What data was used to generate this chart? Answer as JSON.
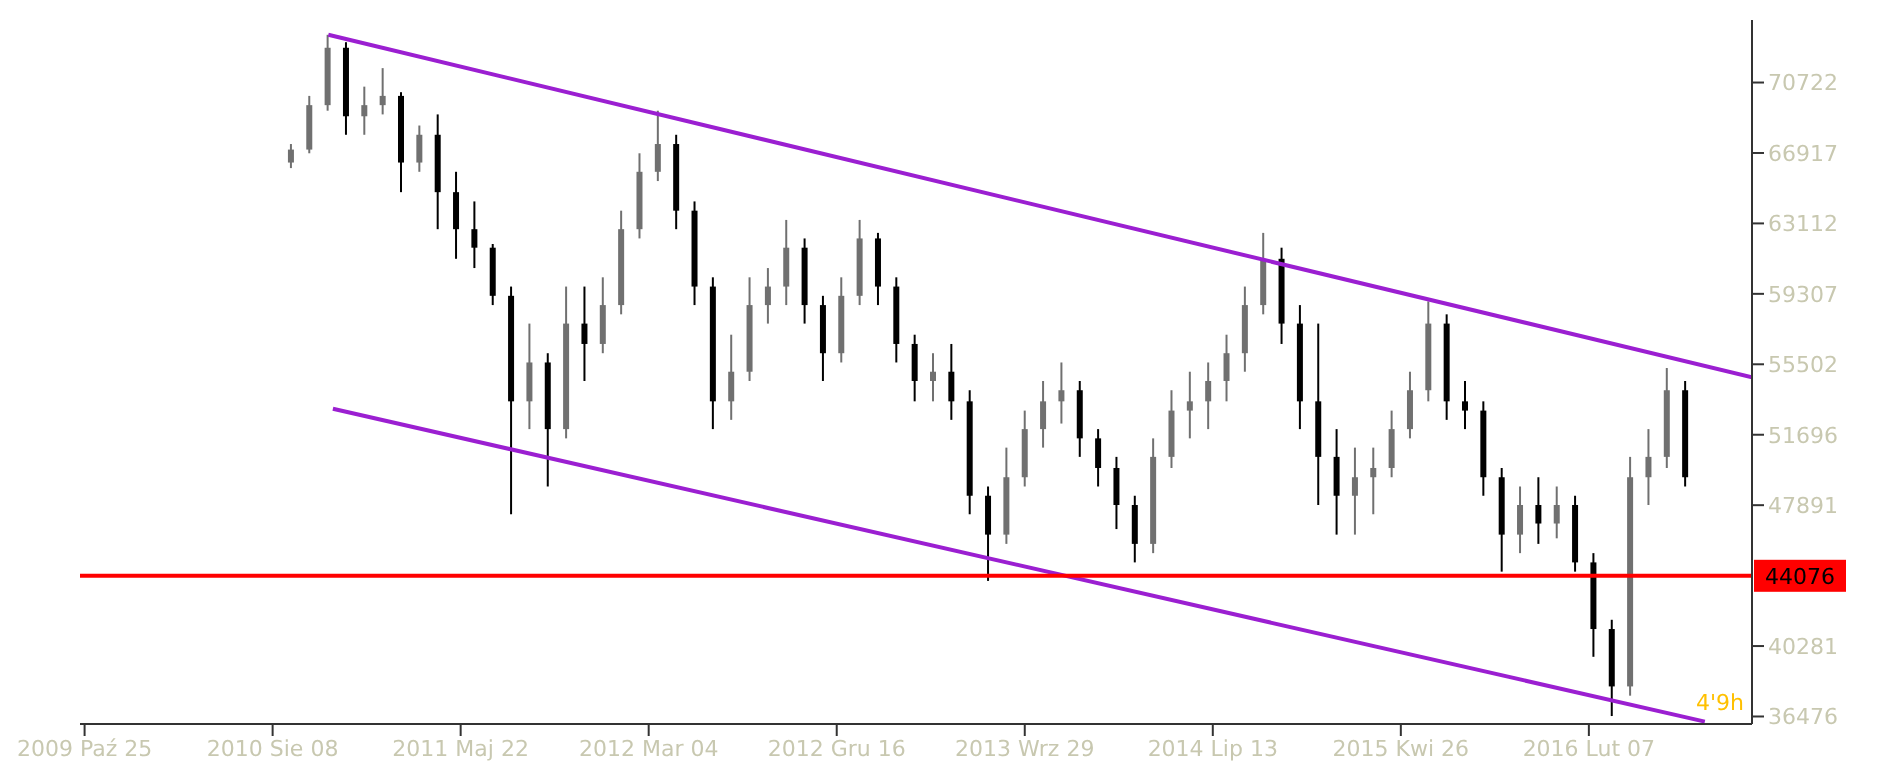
{
  "chart_data": {
    "type": "candlestick",
    "x": [
      "2010-09-05",
      "2010-10-03",
      "2010-10-31",
      "2010-11-28",
      "2010-12-26",
      "2011-01-23",
      "2011-02-20",
      "2011-03-20",
      "2011-04-17",
      "2011-05-15",
      "2011-06-12",
      "2011-07-10",
      "2011-08-07",
      "2011-09-04",
      "2011-10-02",
      "2011-10-30",
      "2011-11-27",
      "2011-12-25",
      "2012-01-22",
      "2012-02-19",
      "2012-03-18",
      "2012-04-15",
      "2012-05-13",
      "2012-06-10",
      "2012-07-08",
      "2012-08-05",
      "2012-09-02",
      "2012-09-30",
      "2012-10-28",
      "2012-11-25",
      "2012-12-23",
      "2013-01-20",
      "2013-02-17",
      "2013-03-17",
      "2013-04-14",
      "2013-05-12",
      "2013-06-09",
      "2013-07-07",
      "2013-08-04",
      "2013-09-01",
      "2013-09-29",
      "2013-10-27",
      "2013-11-24",
      "2013-12-22",
      "2014-01-19",
      "2014-02-16",
      "2014-03-16",
      "2014-04-13",
      "2014-05-11",
      "2014-06-08",
      "2014-07-06",
      "2014-08-03",
      "2014-08-31",
      "2014-09-28",
      "2014-10-26",
      "2014-11-23",
      "2014-12-21",
      "2015-01-18",
      "2015-02-15",
      "2015-03-15",
      "2015-04-12",
      "2015-05-10",
      "2015-06-07",
      "2015-07-05",
      "2015-08-02",
      "2015-08-30",
      "2015-09-27",
      "2015-10-25",
      "2015-11-22",
      "2015-12-20",
      "2016-01-17",
      "2016-02-14",
      "2016-03-13",
      "2016-04-10",
      "2016-05-08",
      "2016-06-05",
      "2016-07-03"
    ],
    "ohlc": [
      [
        66400,
        67400,
        66100,
        67100
      ],
      [
        67100,
        70000,
        66900,
        69500
      ],
      [
        69500,
        73300,
        69200,
        72600
      ],
      [
        72600,
        72900,
        67900,
        68900
      ],
      [
        68900,
        70500,
        67900,
        69500
      ],
      [
        69500,
        71500,
        69000,
        70000
      ],
      [
        70000,
        70200,
        64800,
        66400
      ],
      [
        66400,
        68400,
        65900,
        67900
      ],
      [
        67900,
        69000,
        62800,
        64800
      ],
      [
        64800,
        65900,
        61200,
        62800
      ],
      [
        62800,
        64300,
        60700,
        61800
      ],
      [
        61800,
        62000,
        58700,
        59200
      ],
      [
        59200,
        59700,
        47400,
        53500
      ],
      [
        53500,
        57700,
        52000,
        55600
      ],
      [
        55600,
        56100,
        48900,
        52000
      ],
      [
        52000,
        59700,
        51500,
        57700
      ],
      [
        57700,
        59700,
        54600,
        56600
      ],
      [
        56600,
        60200,
        56100,
        58700
      ],
      [
        58700,
        63800,
        58200,
        62800
      ],
      [
        62800,
        66900,
        62300,
        65900
      ],
      [
        65900,
        69200,
        65400,
        67400
      ],
      [
        67400,
        67900,
        62800,
        63800
      ],
      [
        63800,
        64300,
        58700,
        59700
      ],
      [
        59700,
        60200,
        52000,
        53500
      ],
      [
        53500,
        57100,
        52500,
        55100
      ],
      [
        55100,
        60200,
        54600,
        58700
      ],
      [
        58700,
        60700,
        57700,
        59700
      ],
      [
        59700,
        63300,
        58700,
        61800
      ],
      [
        61800,
        62300,
        57700,
        58700
      ],
      [
        58700,
        59200,
        54600,
        56100
      ],
      [
        56100,
        60200,
        55600,
        59200
      ],
      [
        59200,
        63300,
        58700,
        62300
      ],
      [
        62300,
        62600,
        58700,
        59700
      ],
      [
        59700,
        60200,
        55600,
        56600
      ],
      [
        56600,
        57100,
        53500,
        54600
      ],
      [
        54600,
        56100,
        53500,
        55100
      ],
      [
        55100,
        56600,
        52500,
        53500
      ],
      [
        53500,
        54100,
        47400,
        48400
      ],
      [
        48400,
        48900,
        43800,
        46300
      ],
      [
        46300,
        51000,
        45800,
        49400
      ],
      [
        49400,
        53000,
        48900,
        52000
      ],
      [
        52000,
        54600,
        51000,
        53500
      ],
      [
        53500,
        55600,
        52300,
        54100
      ],
      [
        54100,
        54600,
        50500,
        51500
      ],
      [
        51500,
        52000,
        48900,
        49900
      ],
      [
        49900,
        50500,
        46600,
        47900
      ],
      [
        47900,
        48400,
        44800,
        45800
      ],
      [
        45800,
        51500,
        45300,
        50500
      ],
      [
        50500,
        54100,
        49900,
        53000
      ],
      [
        53000,
        55100,
        51500,
        53500
      ],
      [
        53500,
        55600,
        52000,
        54600
      ],
      [
        54600,
        57100,
        53500,
        56100
      ],
      [
        56100,
        59700,
        55100,
        58700
      ],
      [
        58700,
        62600,
        58200,
        61200
      ],
      [
        61200,
        61800,
        56600,
        57700
      ],
      [
        57700,
        58700,
        52000,
        53500
      ],
      [
        53500,
        57700,
        47900,
        50500
      ],
      [
        50500,
        52000,
        46300,
        48400
      ],
      [
        48400,
        51000,
        46300,
        49400
      ],
      [
        49400,
        51000,
        47400,
        49900
      ],
      [
        49900,
        53000,
        49400,
        52000
      ],
      [
        52000,
        55100,
        51500,
        54100
      ],
      [
        54100,
        58900,
        53500,
        57700
      ],
      [
        57700,
        58200,
        52500,
        53500
      ],
      [
        53500,
        54600,
        52000,
        53000
      ],
      [
        53000,
        53500,
        48400,
        49400
      ],
      [
        49400,
        49900,
        44300,
        46300
      ],
      [
        46300,
        48900,
        45300,
        47900
      ],
      [
        47900,
        49400,
        45800,
        46900
      ],
      [
        46900,
        48900,
        46100,
        47900
      ],
      [
        47900,
        48400,
        44300,
        44800
      ],
      [
        44800,
        45300,
        39700,
        41200
      ],
      [
        41200,
        41700,
        36500,
        38100
      ],
      [
        38100,
        50500,
        37600,
        49400
      ],
      [
        49400,
        52000,
        47900,
        50500
      ],
      [
        50500,
        55300,
        49900,
        54100
      ],
      [
        54100,
        54600,
        48900,
        49400
      ]
    ],
    "colors": [
      "#707070",
      "#707070",
      "#707070",
      "#000000",
      "#707070",
      "#707070",
      "#000000",
      "#707070",
      "#000000",
      "#000000",
      "#000000",
      "#000000",
      "#000000",
      "#707070",
      "#000000",
      "#707070",
      "#000000",
      "#707070",
      "#707070",
      "#707070",
      "#707070",
      "#000000",
      "#000000",
      "#000000",
      "#707070",
      "#707070",
      "#707070",
      "#707070",
      "#000000",
      "#000000",
      "#707070",
      "#707070",
      "#000000",
      "#000000",
      "#000000",
      "#707070",
      "#000000",
      "#000000",
      "#000000",
      "#707070",
      "#707070",
      "#707070",
      "#707070",
      "#000000",
      "#000000",
      "#000000",
      "#000000",
      "#707070",
      "#707070",
      "#707070",
      "#707070",
      "#707070",
      "#707070",
      "#707070",
      "#000000",
      "#000000",
      "#000000",
      "#000000",
      "#707070",
      "#707070",
      "#707070",
      "#707070",
      "#707070",
      "#000000",
      "#000000",
      "#000000",
      "#000000",
      "#707070",
      "#000000",
      "#707070",
      "#000000",
      "#000000",
      "#000000",
      "#707070",
      "#707070",
      "#707070",
      "#000000"
    ],
    "series": [
      {
        "type": "line",
        "x": [
          "2010-11-01",
          "2016-10-13"
        ],
        "values": [
          73300,
          54800
        ],
        "color": "#9b1fd1"
      },
      {
        "type": "line",
        "x": [
          "2010-11-08",
          "2016-08-02"
        ],
        "values": [
          53100,
          36200
        ],
        "color": "#9b1fd1"
      }
    ],
    "ref_lines": [
      {
        "axis": "y",
        "value": 44076,
        "label": "44076",
        "color": "#ff0000"
      }
    ],
    "annotations": [
      "4'9h"
    ],
    "xlim": [
      "2009-10-18",
      "2016-10-13"
    ],
    "xticks": [
      {
        "value": "2009-10-25",
        "label": "2009 Paź 25"
      },
      {
        "value": "2010-08-08",
        "label": "2010 Sie 08"
      },
      {
        "value": "2011-05-22",
        "label": "2011 Maj 22"
      },
      {
        "value": "2012-03-04",
        "label": "2012 Mar 04"
      },
      {
        "value": "2012-12-16",
        "label": "2012 Gru 16"
      },
      {
        "value": "2013-09-29",
        "label": "2013 Wrz 29"
      },
      {
        "value": "2014-07-13",
        "label": "2014 Lip 13"
      },
      {
        "value": "2015-04-26",
        "label": "2015 Kwi 26"
      },
      {
        "value": "2016-02-07",
        "label": "2016 Lut 07"
      }
    ],
    "ylim": [
      36070,
      74100
    ],
    "yticks": [
      36476,
      40281,
      47891,
      51696,
      55502,
      59307,
      63112,
      66917,
      70722
    ]
  }
}
